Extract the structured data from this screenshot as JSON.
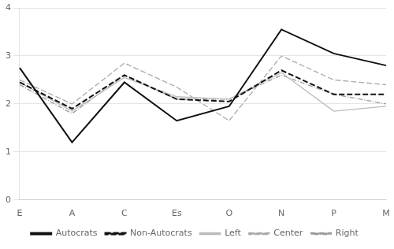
{
  "chart_data": {
    "type": "line",
    "categories": [
      "E",
      "A",
      "C",
      "Es",
      "O",
      "N",
      "P",
      "M"
    ],
    "series": [
      {
        "name": "Autocrats",
        "color": "#111111",
        "line_style": "solid",
        "values": [
          2.75,
          1.2,
          2.45,
          1.65,
          1.95,
          3.55,
          3.05,
          2.8
        ]
      },
      {
        "name": "Non-Autocrats",
        "color": "#111111",
        "line_style": "dashed",
        "values": [
          2.45,
          1.9,
          2.6,
          2.1,
          2.05,
          2.7,
          2.2,
          2.2
        ]
      },
      {
        "name": "Left",
        "color": "#bbbbbb",
        "line_style": "solid",
        "values": [
          2.45,
          1.85,
          2.55,
          2.15,
          2.1,
          2.65,
          1.85,
          1.95
        ]
      },
      {
        "name": "Center",
        "color": "#aaaaaa",
        "line_style": "dashed",
        "values": [
          2.5,
          2.0,
          2.85,
          2.35,
          1.65,
          3.0,
          2.5,
          2.4
        ]
      },
      {
        "name": "Right",
        "color": "#999999",
        "line_style": "dashdot",
        "values": [
          2.4,
          1.8,
          2.6,
          2.1,
          2.1,
          2.6,
          2.2,
          2.0
        ]
      }
    ],
    "ylim": [
      0,
      4
    ],
    "yticks": [
      0,
      1,
      2,
      3,
      4
    ],
    "grid": "y",
    "legend": "bottom"
  }
}
